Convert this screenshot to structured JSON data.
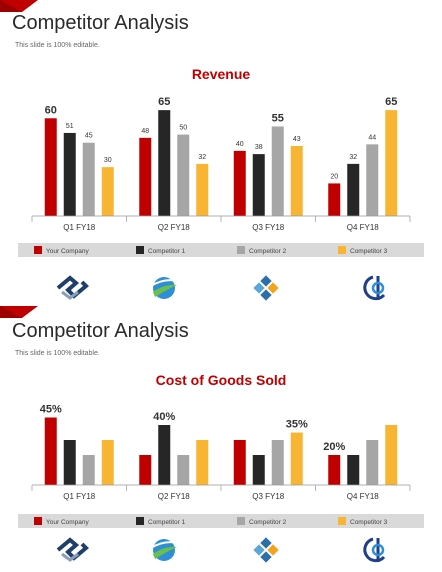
{
  "slides": [
    {
      "title": "Competitor Analysis",
      "subtitle": "This slide is 100% editable.",
      "chart_title": "Revenue"
    },
    {
      "title": "Competitor Analysis",
      "subtitle": "This slide is 100% editable.",
      "chart_title": "Cost of Goods Sold"
    }
  ],
  "colors": {
    "your_company": "#c00000",
    "competitor_1": "#262626",
    "competitor_2": "#a6a6a6",
    "competitor_3": "#f8b433",
    "legend_bg": "#d9d9d9",
    "accent": "#c00000"
  },
  "logos": [
    "diamond-logo-icon",
    "globe-swoosh-logo-icon",
    "tile-diamond-logo-icon",
    "circle-phi-logo-icon"
  ],
  "chart_data": [
    {
      "type": "bar",
      "title": "Revenue",
      "categories": [
        "Q1 FY18",
        "Q2 FY18",
        "Q3 FY18",
        "Q4 FY18"
      ],
      "series": [
        {
          "name": "Your Company",
          "values": [
            60,
            48,
            40,
            20
          ]
        },
        {
          "name": "Competitor 1",
          "values": [
            51,
            65,
            38,
            32
          ]
        },
        {
          "name": "Competitor 2",
          "values": [
            45,
            50,
            55,
            44
          ]
        },
        {
          "name": "Competitor 3",
          "values": [
            30,
            32,
            43,
            65
          ]
        }
      ],
      "data_labels": [
        [
          "60",
          "51",
          "45",
          "30"
        ],
        [
          "48",
          "65",
          "50",
          "32"
        ],
        [
          "40",
          "38",
          "55",
          "43"
        ],
        [
          "20",
          "32",
          "44",
          "65"
        ]
      ],
      "ylim": [
        0,
        70
      ],
      "legend": "bottom",
      "grid": false
    },
    {
      "type": "bar",
      "title": "Cost of Goods Sold",
      "categories": [
        "Q1 FY18",
        "Q2 FY18",
        "Q3 FY18",
        "Q4 FY18"
      ],
      "series": [
        {
          "name": "Your Company",
          "values": [
            45,
            20,
            30,
            20
          ]
        },
        {
          "name": "Competitor 1",
          "values": [
            30,
            40,
            20,
            20
          ]
        },
        {
          "name": "Competitor 2",
          "values": [
            20,
            20,
            30,
            30
          ]
        },
        {
          "name": "Competitor 3",
          "values": [
            30,
            30,
            35,
            40
          ]
        }
      ],
      "data_labels": [
        [
          "45%",
          "",
          "",
          ""
        ],
        [
          "",
          "40%",
          "",
          ""
        ],
        [
          "",
          "",
          "",
          "35%"
        ],
        [
          "20%",
          "",
          "",
          ""
        ]
      ],
      "ylim": [
        0,
        50
      ],
      "legend": "bottom",
      "grid": false
    }
  ]
}
